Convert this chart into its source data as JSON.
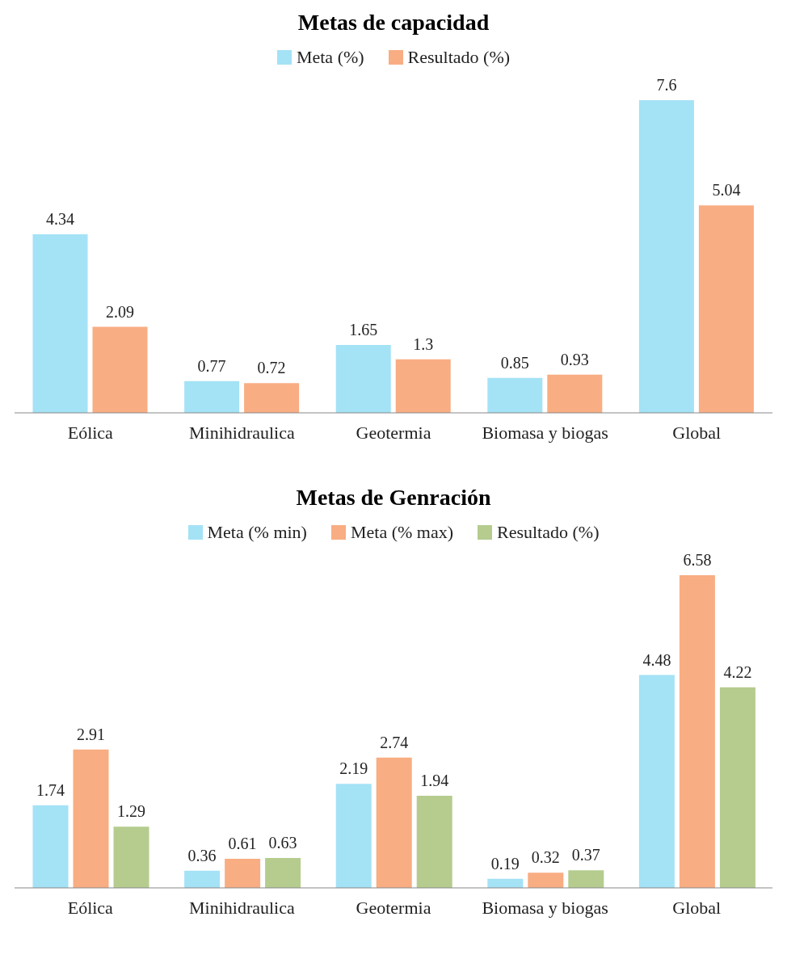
{
  "chart_data": [
    {
      "type": "bar",
      "title": "Metas de capacidad",
      "categories": [
        "Eólica",
        "Minihidraulica",
        "Geotermia",
        "Biomasa y biogas",
        "Global"
      ],
      "series": [
        {
          "name": "Meta (%)",
          "color": "#a4e2f6",
          "values": [
            4.34,
            0.77,
            1.65,
            0.85,
            7.6
          ]
        },
        {
          "name": "Resultado (%)",
          "color": "#f9ad82",
          "values": [
            2.09,
            0.72,
            1.3,
            0.93,
            5.04
          ]
        }
      ],
      "data_labels": true,
      "legend": "top"
    },
    {
      "type": "bar",
      "title": "Metas de Genración",
      "categories": [
        "Eólica",
        "Minihidraulica",
        "Geotermia",
        "Biomasa y biogas",
        "Global"
      ],
      "series": [
        {
          "name": "Meta (% min)",
          "color": "#a4e2f6",
          "values": [
            1.74,
            0.36,
            2.19,
            0.19,
            4.48
          ]
        },
        {
          "name": "Meta (% max)",
          "color": "#f9ad82",
          "values": [
            2.91,
            0.61,
            2.74,
            0.32,
            6.58
          ]
        },
        {
          "name": "Resultado (%)",
          "color": "#b5cc8e",
          "values": [
            1.29,
            0.63,
            1.94,
            0.37,
            4.22
          ]
        }
      ],
      "data_labels": true,
      "legend": "top"
    }
  ]
}
